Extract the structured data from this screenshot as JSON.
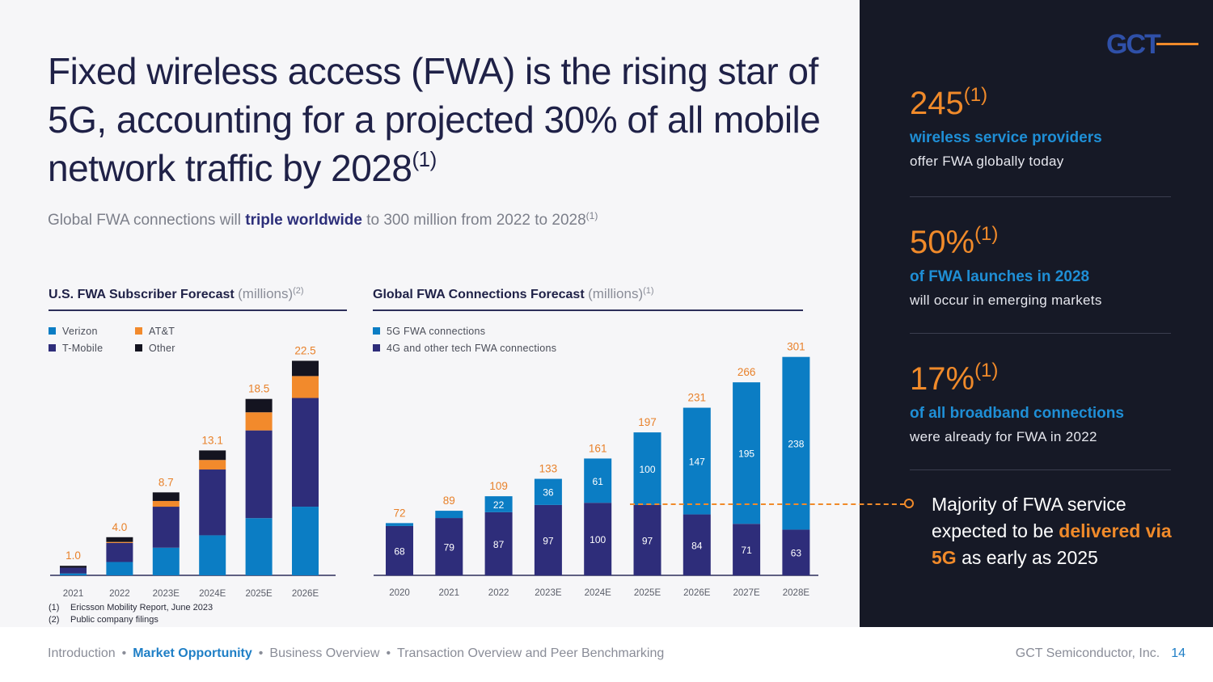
{
  "title": {
    "main": "Fixed wireless access (FWA) is the rising star of 5G, accounting for a projected 30% of all mobile network traffic by 2028",
    "sup": "(1)"
  },
  "subtitle": {
    "pre": "Global FWA connections will ",
    "highlight": "triple worldwide",
    "post": " to 300 million from 2022 to 2028",
    "sup": "(1)"
  },
  "colors": {
    "navy": "#2e2d7a",
    "blue": "#0b7dc4",
    "orange": "#f28a2c",
    "black": "#141420",
    "orange_text": "#e8812a"
  },
  "chart_data": [
    {
      "type": "bar",
      "stacked": true,
      "title": "U.S. FWA Subscriber Forecast",
      "title_unit": "(millions)",
      "title_sup": "(2)",
      "categories": [
        "2021",
        "2022",
        "2023E",
        "2024E",
        "2025E",
        "2026E"
      ],
      "totals": [
        "1.0",
        "4.0",
        "8.7",
        "13.1",
        "18.5",
        "22.5"
      ],
      "series": [
        {
          "name": "Verizon",
          "values": [
            0.2,
            1.4,
            2.9,
            4.2,
            6.0,
            7.2
          ]
        },
        {
          "name": "T-Mobile",
          "values": [
            0.6,
            2.0,
            4.3,
            6.9,
            9.2,
            11.4
          ]
        },
        {
          "name": "AT&T",
          "values": [
            0.0,
            0.1,
            0.6,
            1.0,
            1.9,
            2.3
          ]
        },
        {
          "name": "Other",
          "values": [
            0.2,
            0.5,
            0.9,
            1.0,
            1.4,
            1.6
          ]
        }
      ],
      "ylim": [
        0,
        25
      ]
    },
    {
      "type": "bar",
      "stacked": true,
      "title": "Global FWA Connections Forecast",
      "title_unit": "(millions)",
      "title_sup": "(1)",
      "categories": [
        "2020",
        "2021",
        "2022",
        "2023E",
        "2024E",
        "2025E",
        "2026E",
        "2027E",
        "2028E"
      ],
      "totals": [
        "72",
        "89",
        "109",
        "133",
        "161",
        "197",
        "231",
        "266",
        "301"
      ],
      "series": [
        {
          "name": "4G and other tech FWA connections",
          "values": [
            68,
            79,
            87,
            97,
            100,
            97,
            84,
            71,
            63
          ],
          "labels": [
            "68",
            "79",
            "87",
            "97",
            "100",
            "97",
            "84",
            "71",
            "63"
          ]
        },
        {
          "name": "5G FWA connections",
          "values": [
            4,
            10,
            22,
            36,
            61,
            100,
            147,
            195,
            238
          ],
          "labels": [
            "",
            "",
            "22",
            "36",
            "61",
            "100",
            "147",
            "195",
            "238"
          ]
        }
      ],
      "ylim": [
        0,
        320
      ]
    }
  ],
  "legend1": {
    "verizon": "Verizon",
    "att": "AT&T",
    "tmobile": "T-Mobile",
    "other": "Other"
  },
  "legend2": {
    "fiveg": "5G FWA connections",
    "fourg": "4G and other tech FWA connections"
  },
  "footnotes": [
    {
      "num": "(1)",
      "text": "Ericsson Mobility Report, June 2023"
    },
    {
      "num": "(2)",
      "text": "Public company filings"
    }
  ],
  "stats": [
    {
      "value": "245",
      "sup": "(1)",
      "headline": "wireless service providers",
      "desc": "offer FWA globally today"
    },
    {
      "value": "50%",
      "sup": "(1)",
      "headline": "of FWA launches in 2028",
      "desc": "will occur in emerging markets"
    },
    {
      "value": "17%",
      "sup": "(1)",
      "headline": "of all broadband connections",
      "desc": "were already for FWA in 2022"
    }
  ],
  "callout": {
    "pre": "Majority of FWA service expected to be ",
    "highlight": "delivered via 5G",
    "post": " as early as 2025"
  },
  "footer": {
    "nav": [
      "Introduction",
      "Market Opportunity",
      "Business Overview",
      "Transaction Overview and Peer Benchmarking"
    ],
    "active_index": 1,
    "separator": "•",
    "company": "GCT Semiconductor, Inc.",
    "page": "14"
  },
  "logo": {
    "text": "GCT"
  }
}
